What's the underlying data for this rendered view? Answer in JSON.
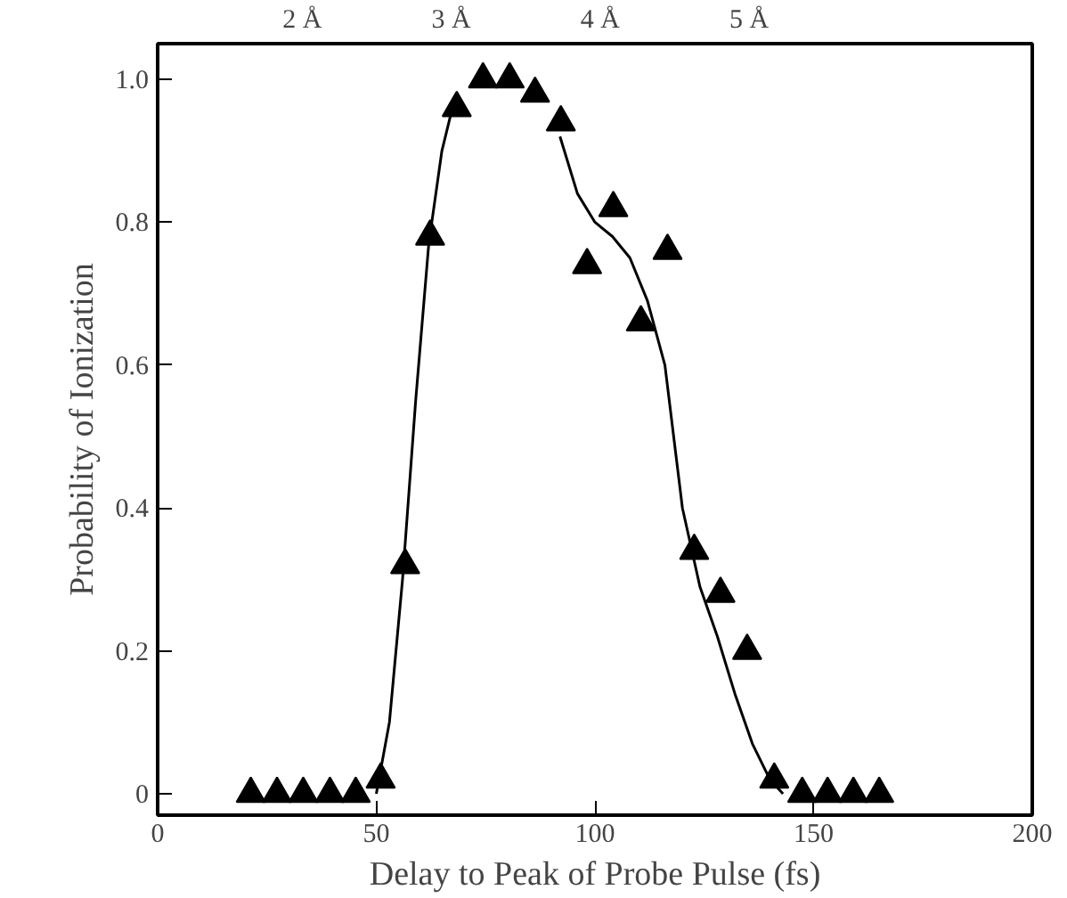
{
  "chart_data": {
    "type": "scatter",
    "xlabel": "Delay to Peak of Probe Pulse (fs)",
    "ylabel": "Probability of Ionization",
    "xlim": [
      0,
      200
    ],
    "xticks": [
      0,
      50,
      100,
      150,
      200
    ],
    "ylim": [
      -0.03,
      1.05
    ],
    "yticks": [
      0,
      {
        "value": 0.2,
        "label": "0.2"
      },
      {
        "value": 0.4,
        "label": "0.4"
      },
      {
        "value": 0.6,
        "label": "0.6"
      },
      {
        "value": 0.8,
        "label": "0.8"
      },
      {
        "value": 1.0,
        "label": "1.0"
      }
    ],
    "x2lim": [
      1.03,
      6.9
    ],
    "x2ticks": [
      {
        "value": 2,
        "label": "2 Å"
      },
      {
        "value": 3,
        "label": "3 Å"
      },
      {
        "value": 4,
        "label": "4 Å"
      },
      {
        "value": 5,
        "label": "5 Å"
      }
    ],
    "grid": false,
    "series": [
      {
        "marker": "triangle",
        "color": "#000000",
        "x": [
          21.3,
          27.3,
          33.3,
          39.4,
          45.3,
          51,
          56.6,
          62.3,
          68.4,
          74.4,
          80.5,
          86.3,
          92.2,
          98.2,
          104.2,
          110.5,
          116.6,
          122.7,
          128.7,
          134.8,
          141,
          147.4,
          153.2,
          159.1,
          165
        ],
        "values": [
          0,
          0,
          0,
          0,
          0,
          0.02,
          0.32,
          0.78,
          0.96,
          1.0,
          1.0,
          0.98,
          0.94,
          0.74,
          0.82,
          0.66,
          0.76,
          0.34,
          0.28,
          0.2,
          0.02,
          0,
          0,
          0,
          0
        ]
      },
      {
        "type": "line",
        "line_style": "solid",
        "color": "#000000",
        "x": [
          50,
          53,
          56,
          59,
          62,
          65,
          67,
          80,
          92,
          96,
          100,
          104,
          108,
          112,
          116,
          120,
          124,
          128,
          132,
          136,
          140,
          143
        ],
        "values": [
          0,
          0.1,
          0.3,
          0.55,
          0.77,
          0.9,
          0.95,
          null,
          0.92,
          0.84,
          0.8,
          0.78,
          0.75,
          0.69,
          0.6,
          0.4,
          0.29,
          0.22,
          0.14,
          0.07,
          0.02,
          0
        ]
      }
    ]
  }
}
